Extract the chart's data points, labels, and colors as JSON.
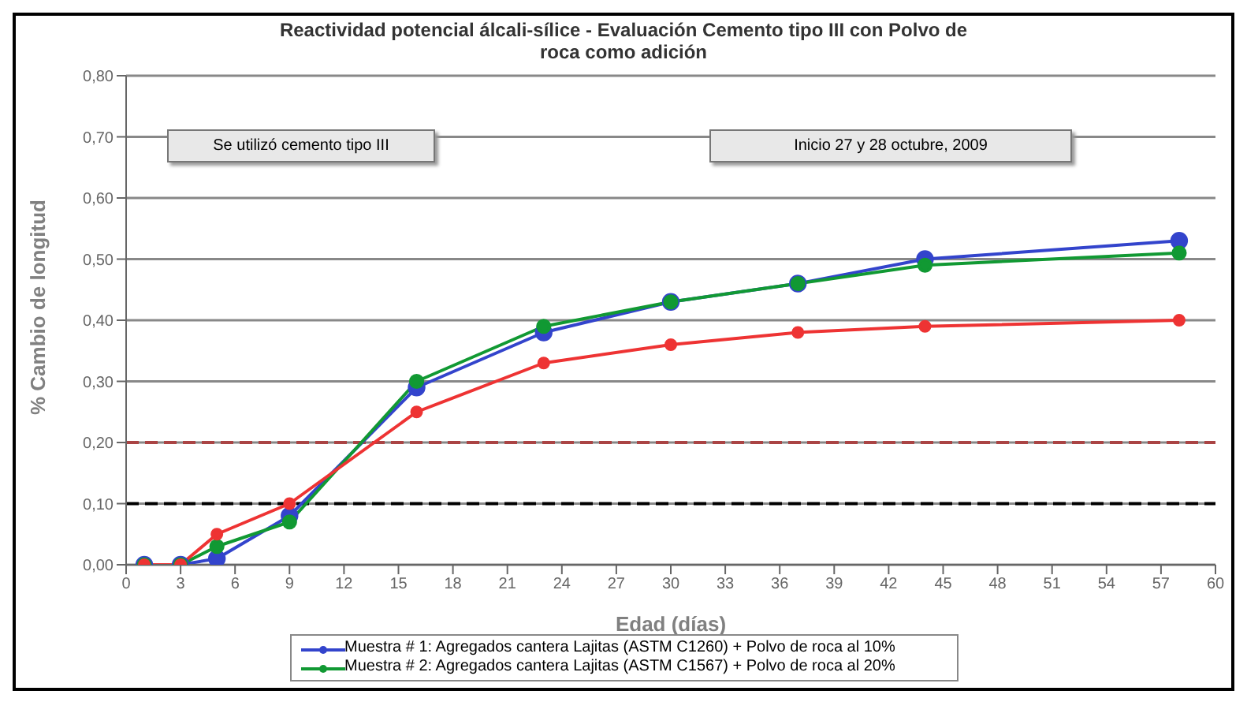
{
  "chart_data": {
    "type": "line",
    "title": "Reactividad potencial álcali-sílice - Evaluación Cemento tipo III con Polvo de roca como adición",
    "xlabel": "Edad (días)",
    "ylabel": "% Cambio de longitud",
    "annotations": [
      "Se utilizó cemento tipo III",
      "Inicio 27 y 28 octubre, 2009"
    ],
    "x": [
      1,
      3,
      5,
      9,
      16,
      23,
      30,
      37,
      44,
      58
    ],
    "series": [
      {
        "name": "Muestra # 1: Agregados cantera Lajitas (ASTM C1260) + Polvo de roca al 10%",
        "color": "#3344cc",
        "values": [
          0,
          0,
          0.01,
          0.08,
          0.29,
          0.38,
          0.43,
          0.46,
          0.5,
          0.53
        ]
      },
      {
        "name": "Muestra # 2: Agregados cantera Lajitas (ASTM C1567) + Polvo de roca al 20%",
        "color": "#119933",
        "values": [
          0,
          0,
          0.03,
          0.07,
          0.3,
          0.39,
          0.43,
          0.46,
          0.49,
          0.51
        ]
      },
      {
        "color": "#ee3333",
        "values": [
          0,
          0,
          0.05,
          0.1,
          0.25,
          0.33,
          0.36,
          0.38,
          0.39,
          0.4
        ]
      }
    ],
    "xlim": [
      0,
      60
    ],
    "xticks": [
      0,
      3,
      6,
      9,
      12,
      15,
      18,
      21,
      24,
      27,
      30,
      33,
      36,
      39,
      42,
      45,
      48,
      51,
      54,
      57,
      60
    ],
    "ylim": [
      0,
      0.8
    ],
    "yticks": [
      {
        "value": 0,
        "label": "0,00"
      },
      {
        "value": 0.1,
        "label": "0,10"
      },
      {
        "value": 0.2,
        "label": "0,20"
      },
      {
        "value": 0.3,
        "label": "0,30"
      },
      {
        "value": 0.4,
        "label": "0,40"
      },
      {
        "value": 0.5,
        "label": "0,50"
      },
      {
        "value": 0.6,
        "label": "0,60"
      },
      {
        "value": 0.7,
        "label": "0,70"
      },
      {
        "value": 0.8,
        "label": "0,80"
      }
    ],
    "ref_lines": [
      {
        "axis": "y",
        "value": 0.1,
        "color": "#000000",
        "line_style": "dashed"
      },
      {
        "axis": "y",
        "value": 0.2,
        "color": "#aa4444",
        "line_style": "dashed"
      }
    ],
    "grid": "y",
    "legend": "bottom",
    "marker": "circle",
    "line_style": "solid"
  }
}
